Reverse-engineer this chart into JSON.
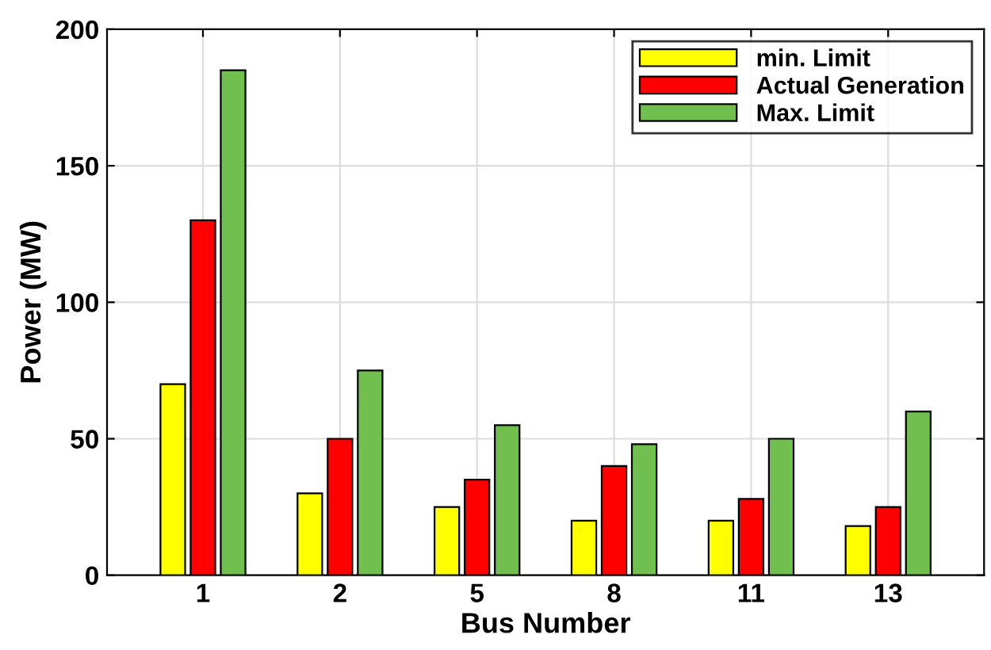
{
  "chart_data": {
    "type": "bar",
    "xlabel": "Bus Number",
    "ylabel": "Power (MW)",
    "categories": [
      "1",
      "2",
      "5",
      "8",
      "11",
      "13"
    ],
    "series": [
      {
        "name": "min. Limit",
        "color": "#ffff00",
        "values": [
          70,
          30,
          25,
          20,
          20,
          18
        ]
      },
      {
        "name": "Actual Generation",
        "color": "#ff0000",
        "values": [
          130,
          50,
          35,
          40,
          28,
          25
        ]
      },
      {
        "name": "Max. Limit",
        "color": "#70bf4f",
        "values": [
          185,
          75,
          55,
          48,
          50,
          60
        ]
      }
    ],
    "ylim": [
      0,
      200
    ],
    "yticks": [
      0,
      50,
      100,
      150,
      200
    ],
    "grid": true,
    "legend": "top right"
  }
}
